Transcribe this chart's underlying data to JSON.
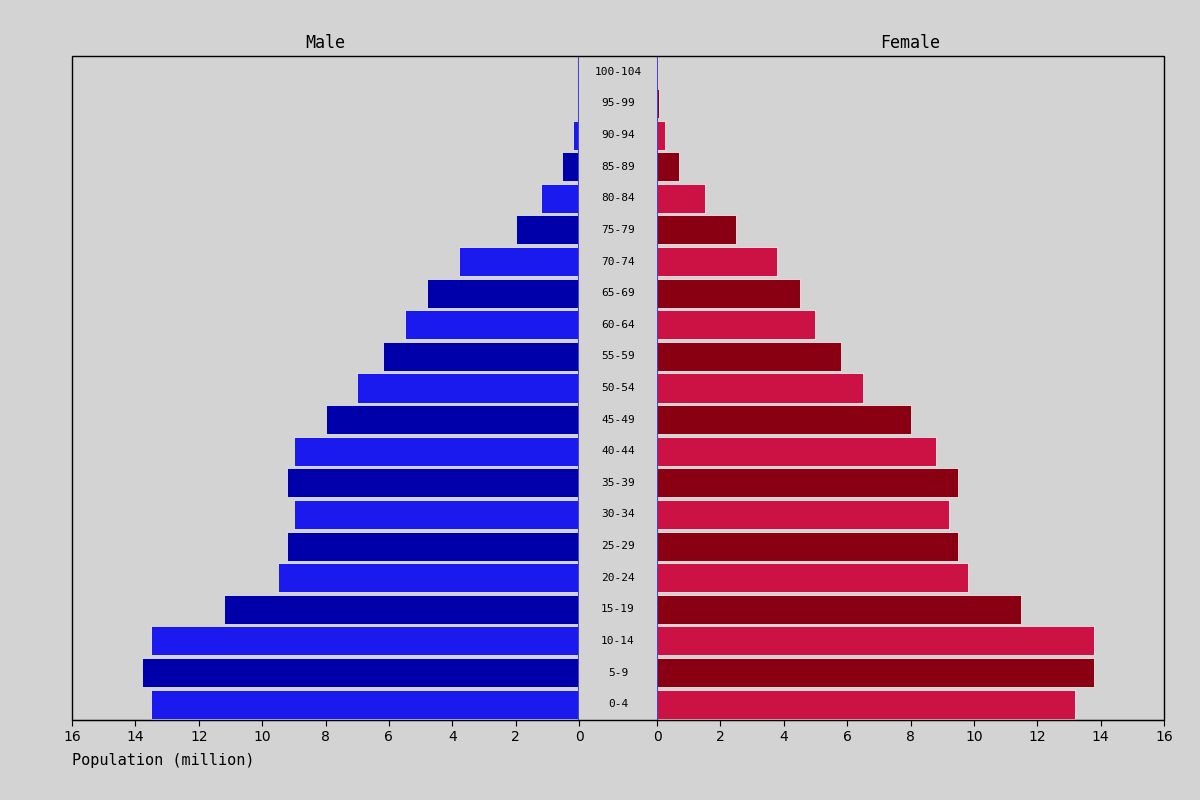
{
  "age_groups": [
    "0-4",
    "5-9",
    "10-14",
    "15-19",
    "20-24",
    "25-29",
    "30-34",
    "35-39",
    "40-44",
    "45-49",
    "50-54",
    "55-59",
    "60-64",
    "65-69",
    "70-74",
    "75-79",
    "80-84",
    "85-89",
    "90-94",
    "95-99",
    "100-104"
  ],
  "male": [
    13.5,
    13.8,
    13.5,
    11.2,
    9.5,
    9.2,
    9.0,
    9.2,
    9.0,
    8.0,
    7.0,
    6.2,
    5.5,
    4.8,
    3.8,
    2.0,
    1.2,
    0.55,
    0.18,
    0.05,
    0.02
  ],
  "female": [
    13.2,
    13.8,
    13.8,
    11.5,
    9.8,
    9.5,
    9.2,
    9.5,
    8.8,
    8.0,
    6.5,
    5.8,
    5.0,
    4.5,
    3.8,
    2.5,
    1.5,
    0.7,
    0.25,
    0.07,
    0.02
  ],
  "male_bar_colors": [
    "#1a1aee",
    "#0000aa",
    "#1a1aee",
    "#0000aa",
    "#1a1aee",
    "#0000aa",
    "#1a1aee",
    "#0000aa",
    "#1a1aee",
    "#0000aa",
    "#1a1aee",
    "#0000aa",
    "#1a1aee",
    "#0000aa",
    "#1a1aee",
    "#0000aa",
    "#1a1aee",
    "#0000aa",
    "#1a1aee",
    "#0000aa",
    "#1a1aee"
  ],
  "female_bar_colors": [
    "#cc1144",
    "#880011",
    "#cc1144",
    "#880011",
    "#cc1144",
    "#880011",
    "#cc1144",
    "#880011",
    "#cc1144",
    "#880011",
    "#cc1144",
    "#880011",
    "#cc1144",
    "#880011",
    "#cc1144",
    "#880011",
    "#cc1144",
    "#880011",
    "#cc1144",
    "#880011",
    "#cc1144"
  ],
  "title_male": "Male",
  "title_female": "Female",
  "xlabel": "Population (million)",
  "xlim": 16,
  "background_color": "#d3d3d3",
  "center_line_color": "#4444cc",
  "tick_fontsize": 10,
  "label_fontsize": 8,
  "title_fontsize": 12
}
